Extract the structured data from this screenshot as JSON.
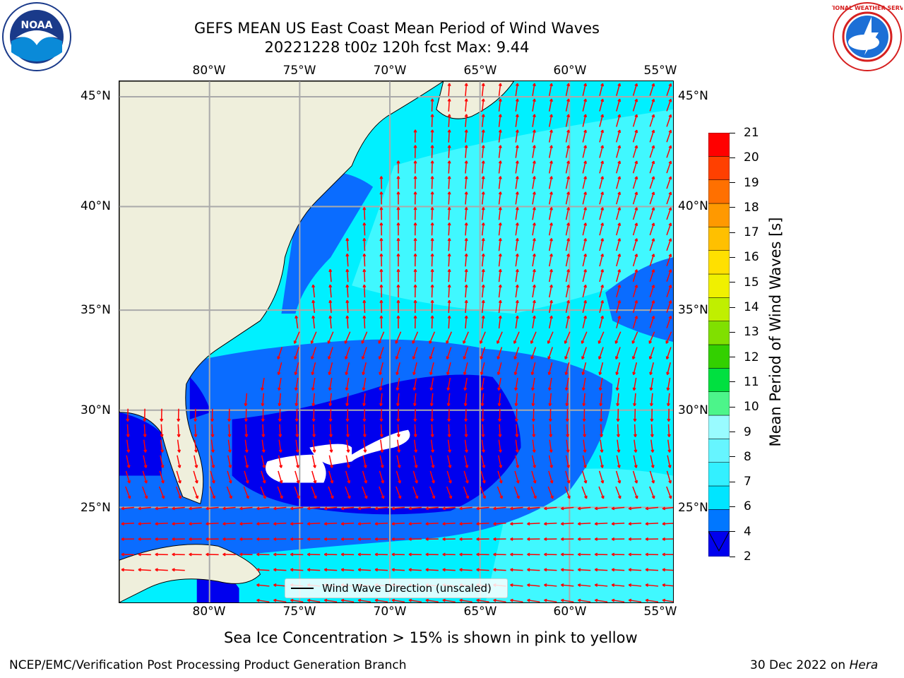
{
  "title": {
    "line1": "GEFS MEAN US East Coast Mean Period of Wind Waves",
    "line2": "20221228 t00z 120h fcst   Max: 9.44"
  },
  "axes": {
    "lon_labels": [
      "80°W",
      "75°W",
      "70°W",
      "65°W",
      "60°W",
      "55°W"
    ],
    "lat_labels": [
      "45°N",
      "40°N",
      "35°N",
      "30°N",
      "25°N"
    ],
    "lon_range": [
      -85,
      -55
    ],
    "lat_range": [
      20.5,
      46
    ]
  },
  "colorbar": {
    "label": "Mean Period of Wind Waves [s]",
    "ticks": [
      "21",
      "20",
      "19",
      "18",
      "17",
      "16",
      "15",
      "14",
      "13",
      "12",
      "11",
      "10",
      "9",
      "8",
      "7",
      "6",
      "4",
      "2"
    ],
    "colors": [
      "#0000ee",
      "#0077ff",
      "#00e5ff",
      "#33f0ff",
      "#66f5ff",
      "#99fbff",
      "#4cf58a",
      "#00e040",
      "#33d000",
      "#80e000",
      "#c0ef00",
      "#f0f000",
      "#ffe000",
      "#ffc000",
      "#ff9900",
      "#ff7000",
      "#ff4000",
      "#ff0000"
    ]
  },
  "legend": {
    "text": "Wind Wave Direction (unscaled)"
  },
  "note": "Sea Ice Concentration > 15% is shown in pink to yellow",
  "footer": {
    "left": "NCEP/EMC/Verification Post Processing Product Generation Branch",
    "right_date": "30 Dec 2022 on ",
    "right_host": "Hera"
  },
  "logos": {
    "left": "NOAA",
    "right": "NATIONAL WEATHER SERVICE"
  },
  "map_colors": {
    "land": "#efefdc",
    "deep_blue": "#0000ee",
    "mid_blue": "#0a6cff",
    "cyan": "#00f0ff",
    "light_cyan": "#40f8ff",
    "white": "#ffffff",
    "arrow": "#ff0000",
    "grid": "#aaaaaa"
  }
}
